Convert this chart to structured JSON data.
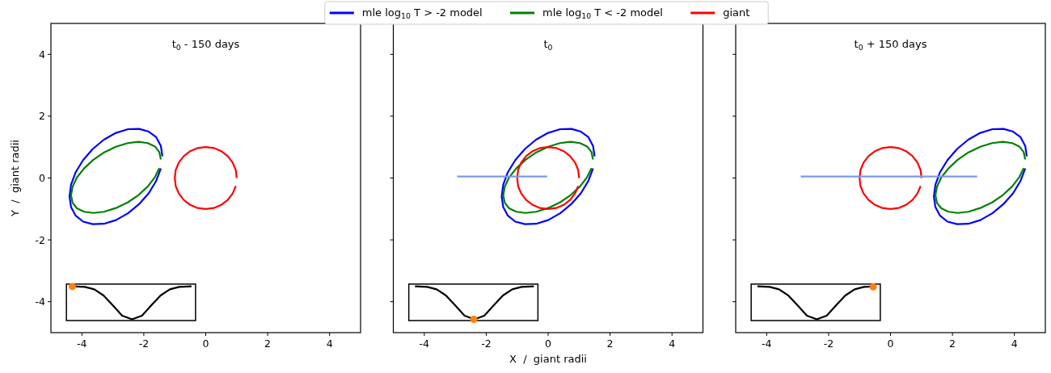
{
  "chart_data": [
    {
      "type": "line",
      "title": "t$_{0}$ - 150 days",
      "ylabel": "Y  /  giant radii",
      "xlim": [
        -5,
        5
      ],
      "ylim": [
        -5,
        5
      ],
      "xticks": [
        -4,
        -2,
        0,
        2,
        4
      ],
      "yticks": [
        -4,
        -2,
        0,
        2,
        4
      ],
      "series": [
        {
          "color": "#0000ff",
          "x": [
            -1.4,
            -1.45,
            -1.6,
            -1.84,
            -2.15,
            -2.51,
            -2.9,
            -3.29,
            -3.65,
            -3.96,
            -4.2,
            -4.35,
            -4.4,
            -4.35,
            -4.2,
            -3.96,
            -3.65,
            -3.29,
            -2.9,
            -2.51,
            -2.15,
            -1.84,
            -1.6,
            -1.45
          ],
          "values": [
            0.7,
            1.04,
            1.32,
            1.5,
            1.59,
            1.58,
            1.46,
            1.24,
            0.94,
            0.58,
            0.19,
            -0.21,
            -0.6,
            -0.94,
            -1.22,
            -1.41,
            -1.49,
            -1.48,
            -1.36,
            -1.14,
            -0.84,
            -0.49,
            -0.09,
            0.31
          ]
        },
        {
          "color": "#008000",
          "x": [
            -1.45,
            -1.5,
            -1.64,
            -1.87,
            -2.17,
            -2.52,
            -2.9,
            -3.28,
            -3.63,
            -3.93,
            -4.16,
            -4.3,
            -4.35,
            -4.3,
            -4.16,
            -3.93,
            -3.63,
            -3.28,
            -2.9,
            -2.52,
            -2.17,
            -1.87,
            -1.64,
            -1.5
          ],
          "values": [
            0.6,
            0.84,
            1.02,
            1.13,
            1.17,
            1.13,
            1.01,
            0.83,
            0.59,
            0.31,
            0.02,
            -0.28,
            -0.56,
            -0.8,
            -0.98,
            -1.09,
            -1.13,
            -1.09,
            -0.97,
            -0.79,
            -0.55,
            -0.27,
            0.03,
            0.32
          ]
        },
        {
          "color": "#ff0000",
          "x": [
            1,
            0.97,
            0.87,
            0.71,
            0.5,
            0.26,
            0,
            -0.26,
            -0.5,
            -0.71,
            -0.87,
            -0.97,
            -1,
            -0.97,
            -0.87,
            -0.71,
            -0.5,
            -0.26,
            0,
            0.26,
            0.5,
            0.71,
            0.87,
            0.97
          ],
          "values": [
            0,
            0.26,
            0.5,
            0.71,
            0.87,
            0.97,
            1,
            0.97,
            0.87,
            0.71,
            0.5,
            0.26,
            0,
            -0.26,
            -0.5,
            -0.71,
            -0.87,
            -0.97,
            -1,
            -0.97,
            -0.87,
            -0.71,
            -0.5,
            -0.26
          ]
        },
        {
          "color": "#000000",
          "x": [
            -4.3,
            -3.9,
            -3.6,
            -3.3,
            -3.0,
            -2.7,
            -2.38,
            -2.06,
            -1.76,
            -1.46,
            -1.16,
            -0.86,
            -0.46
          ],
          "values": [
            -3.5,
            -3.52,
            -3.6,
            -3.8,
            -4.12,
            -4.45,
            -4.57,
            -4.45,
            -4.12,
            -3.8,
            -3.6,
            -3.52,
            -3.5
          ]
        },
        {
          "type": "scatter",
          "marker": "circle",
          "color": "#ff7f0e",
          "x": [
            -4.31
          ],
          "values": [
            -3.51
          ]
        }
      ]
    },
    {
      "type": "line",
      "title": "t$_{0}$",
      "xlabel": "X  /  giant radii",
      "xlim": [
        -5,
        5
      ],
      "ylim": [
        -5,
        5
      ],
      "xticks": [
        -4,
        -2,
        0,
        2,
        4
      ],
      "yticks": [
        -4,
        -2,
        0,
        2,
        4
      ],
      "tick_labels": "x",
      "legend": "top",
      "series": [
        {
          "name": "mle log$_{10}$ T > -2 model",
          "color": "#0000ff",
          "x": [
            1.5,
            1.45,
            1.3,
            1.06,
            0.75,
            0.39,
            0,
            -0.39,
            -0.75,
            -1.06,
            -1.3,
            -1.45,
            -1.5,
            -1.45,
            -1.3,
            -1.06,
            -0.75,
            -0.39,
            0,
            0.39,
            0.75,
            1.06,
            1.3,
            1.45
          ],
          "values": [
            0.7,
            1.04,
            1.32,
            1.5,
            1.59,
            1.58,
            1.46,
            1.24,
            0.94,
            0.58,
            0.19,
            -0.21,
            -0.6,
            -0.94,
            -1.22,
            -1.41,
            -1.49,
            -1.48,
            -1.36,
            -1.14,
            -0.84,
            -0.49,
            -0.09,
            0.31
          ]
        },
        {
          "name": "mle log$_{10}$ T < -2 model",
          "color": "#008000",
          "x": [
            1.45,
            1.4,
            1.26,
            1.03,
            0.73,
            0.38,
            0,
            -0.38,
            -0.73,
            -1.03,
            -1.26,
            -1.4,
            -1.45,
            -1.4,
            -1.26,
            -1.03,
            -0.73,
            -0.38,
            0,
            0.38,
            0.73,
            1.03,
            1.26,
            1.4
          ],
          "values": [
            0.6,
            0.84,
            1.02,
            1.13,
            1.17,
            1.13,
            1.01,
            0.83,
            0.59,
            0.31,
            0.02,
            -0.28,
            -0.56,
            -0.8,
            -0.98,
            -1.09,
            -1.13,
            -1.09,
            -0.97,
            -0.79,
            -0.55,
            -0.27,
            0.03,
            0.32
          ]
        },
        {
          "name": "giant",
          "color": "#ff0000",
          "x": [
            1,
            0.97,
            0.87,
            0.71,
            0.5,
            0.26,
            0,
            -0.26,
            -0.5,
            -0.71,
            -0.87,
            -0.97,
            -1,
            -0.97,
            -0.87,
            -0.71,
            -0.5,
            -0.26,
            0,
            0.26,
            0.5,
            0.71,
            0.87,
            0.97
          ],
          "values": [
            0,
            0.26,
            0.5,
            0.71,
            0.87,
            0.97,
            1,
            0.97,
            0.87,
            0.71,
            0.5,
            0.26,
            0,
            -0.26,
            -0.5,
            -0.71,
            -0.87,
            -0.97,
            -1,
            -0.97,
            -0.87,
            -0.71,
            -0.5,
            -0.26
          ]
        },
        {
          "color": "#7b9ae6",
          "x": [
            -2.94,
            -0.03
          ],
          "values": [
            0.05,
            0.05
          ]
        },
        {
          "color": "#000000",
          "x": [
            -4.3,
            -3.9,
            -3.6,
            -3.3,
            -3.0,
            -2.7,
            -2.38,
            -2.06,
            -1.76,
            -1.46,
            -1.16,
            -0.86,
            -0.46
          ],
          "values": [
            -3.5,
            -3.52,
            -3.6,
            -3.8,
            -4.12,
            -4.45,
            -4.57,
            -4.45,
            -4.12,
            -3.8,
            -3.6,
            -3.52,
            -3.5
          ]
        },
        {
          "type": "scatter",
          "marker": "circle",
          "color": "#ff7f0e",
          "x": [
            -2.4
          ],
          "values": [
            -4.57
          ]
        }
      ]
    },
    {
      "type": "line",
      "title": "t$_{0}$ + 150 days",
      "xlim": [
        -5,
        5
      ],
      "ylim": [
        -5,
        5
      ],
      "xticks": [
        -4,
        -2,
        0,
        2,
        4
      ],
      "yticks": [
        -4,
        -2,
        0,
        2,
        4
      ],
      "tick_labels": "x",
      "series": [
        {
          "color": "#0000ff",
          "x": [
            4.4,
            4.35,
            4.2,
            3.96,
            3.65,
            3.29,
            2.9,
            2.51,
            2.15,
            1.84,
            1.6,
            1.45,
            1.4,
            1.45,
            1.6,
            1.84,
            2.15,
            2.51,
            2.9,
            3.29,
            3.65,
            3.96,
            4.2,
            4.35
          ],
          "values": [
            0.7,
            1.04,
            1.32,
            1.5,
            1.59,
            1.58,
            1.46,
            1.24,
            0.94,
            0.58,
            0.19,
            -0.21,
            -0.6,
            -0.94,
            -1.22,
            -1.41,
            -1.49,
            -1.48,
            -1.36,
            -1.14,
            -0.84,
            -0.49,
            -0.09,
            0.31
          ]
        },
        {
          "color": "#008000",
          "x": [
            4.35,
            4.3,
            4.16,
            3.93,
            3.63,
            3.28,
            2.9,
            2.52,
            2.17,
            1.87,
            1.64,
            1.5,
            1.45,
            1.5,
            1.64,
            1.87,
            2.17,
            2.52,
            2.9,
            3.28,
            3.63,
            3.93,
            4.16,
            4.3
          ],
          "values": [
            0.6,
            0.84,
            1.02,
            1.13,
            1.17,
            1.13,
            1.01,
            0.83,
            0.59,
            0.31,
            0.02,
            -0.28,
            -0.56,
            -0.8,
            -0.98,
            -1.09,
            -1.13,
            -1.09,
            -0.97,
            -0.79,
            -0.55,
            -0.27,
            0.03,
            0.32
          ]
        },
        {
          "color": "#ff0000",
          "x": [
            1,
            0.97,
            0.87,
            0.71,
            0.5,
            0.26,
            0,
            -0.26,
            -0.5,
            -0.71,
            -0.87,
            -0.97,
            -1,
            -0.97,
            -0.87,
            -0.71,
            -0.5,
            -0.26,
            0,
            0.26,
            0.5,
            0.71,
            0.87,
            0.97
          ],
          "values": [
            0,
            0.26,
            0.5,
            0.71,
            0.87,
            0.97,
            1,
            0.97,
            0.87,
            0.71,
            0.5,
            0.26,
            0,
            -0.26,
            -0.5,
            -0.71,
            -0.87,
            -0.97,
            -1,
            -0.97,
            -0.87,
            -0.71,
            -0.5,
            -0.26
          ]
        },
        {
          "color": "#7b9ae6",
          "x": [
            -2.9,
            2.8
          ],
          "values": [
            0.05,
            0.05
          ]
        },
        {
          "color": "#000000",
          "x": [
            -4.3,
            -3.9,
            -3.6,
            -3.3,
            -3.0,
            -2.7,
            -2.38,
            -2.06,
            -1.76,
            -1.46,
            -1.16,
            -0.86,
            -0.46
          ],
          "values": [
            -3.5,
            -3.52,
            -3.6,
            -3.8,
            -4.12,
            -4.45,
            -4.57,
            -4.45,
            -4.12,
            -3.8,
            -3.6,
            -3.52,
            -3.5
          ]
        },
        {
          "type": "scatter",
          "marker": "circle",
          "color": "#ff7f0e",
          "x": [
            -0.56
          ],
          "values": [
            -3.52
          ]
        }
      ]
    }
  ]
}
